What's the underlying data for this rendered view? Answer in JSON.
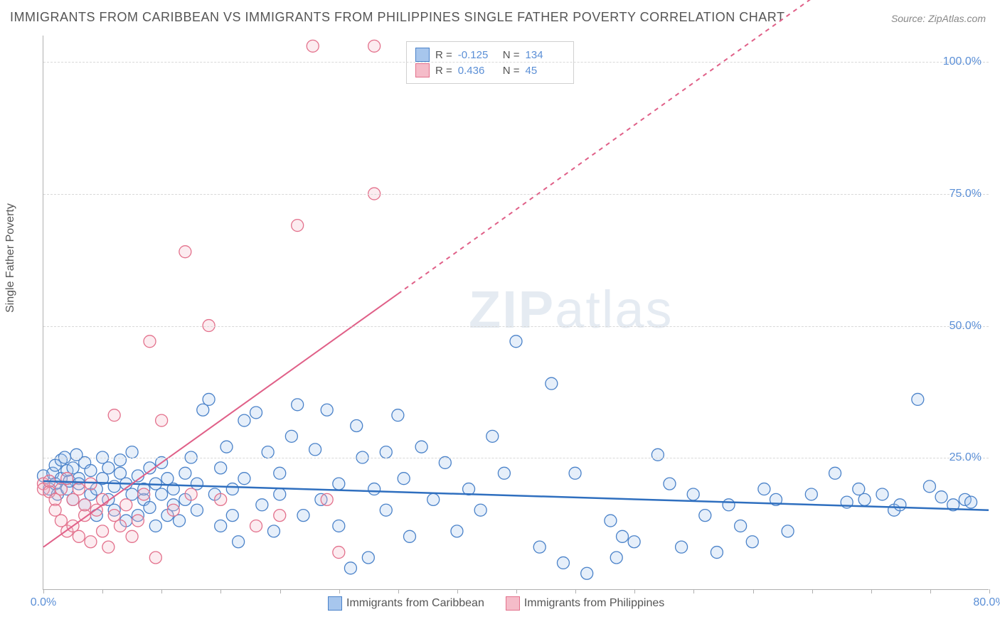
{
  "title": "IMMIGRANTS FROM CARIBBEAN VS IMMIGRANTS FROM PHILIPPINES SINGLE FATHER POVERTY CORRELATION CHART",
  "source": "Source: ZipAtlas.com",
  "watermark_part1": "ZIP",
  "watermark_part2": "atlas",
  "ylabel": "Single Father Poverty",
  "chart": {
    "type": "scatter",
    "xlim": [
      0,
      80
    ],
    "ylim": [
      0,
      105
    ],
    "ytick_positions": [
      25,
      50,
      75,
      100
    ],
    "ytick_labels": [
      "25.0%",
      "50.0%",
      "75.0%",
      "100.0%"
    ],
    "xtick_positions": [
      0,
      80
    ],
    "xtick_labels": [
      "0.0%",
      "80.0%"
    ],
    "xtick_minor_step": 5,
    "background_color": "#ffffff",
    "grid_color": "#d8d8d8",
    "marker_radius": 8.5,
    "marker_stroke_width": 1.3,
    "marker_fill_opacity": 0.28,
    "series": [
      {
        "name": "Immigrants from Caribbean",
        "color_fill": "#a7c6ed",
        "color_stroke": "#4a82c9",
        "r_value": "-0.125",
        "n_value": "134",
        "trend": {
          "x1": 0,
          "y1": 20.5,
          "x2": 80,
          "y2": 15.0,
          "dash": "none",
          "width": 2.5,
          "color": "#2f6fbf",
          "extend_to": 80
        },
        "points": [
          [
            0,
            21.5
          ],
          [
            0.5,
            19
          ],
          [
            0.8,
            22
          ],
          [
            1,
            20
          ],
          [
            1,
            23.5
          ],
          [
            1.2,
            18
          ],
          [
            1.5,
            21
          ],
          [
            1.5,
            24.5
          ],
          [
            1.8,
            25
          ],
          [
            2,
            19
          ],
          [
            2,
            22.5
          ],
          [
            2.2,
            20.5
          ],
          [
            2.5,
            23
          ],
          [
            2.5,
            17
          ],
          [
            2.8,
            25.5
          ],
          [
            3,
            21
          ],
          [
            3,
            20
          ],
          [
            3.5,
            24
          ],
          [
            3.5,
            16
          ],
          [
            4,
            18
          ],
          [
            4,
            22.5
          ],
          [
            4.5,
            19
          ],
          [
            4.5,
            14
          ],
          [
            5,
            25
          ],
          [
            5,
            21
          ],
          [
            5.5,
            17
          ],
          [
            5.5,
            23
          ],
          [
            6,
            19.5
          ],
          [
            6,
            15
          ],
          [
            6.5,
            22
          ],
          [
            6.5,
            24.5
          ],
          [
            7,
            20
          ],
          [
            7,
            13
          ],
          [
            7.5,
            18
          ],
          [
            7.5,
            26
          ],
          [
            8,
            14
          ],
          [
            8,
            21.5
          ],
          [
            8.5,
            17
          ],
          [
            8.5,
            19
          ],
          [
            9,
            23
          ],
          [
            9,
            15.5
          ],
          [
            9.5,
            20
          ],
          [
            9.5,
            12
          ],
          [
            10,
            24
          ],
          [
            10,
            18
          ],
          [
            10.5,
            14
          ],
          [
            10.5,
            21
          ],
          [
            11,
            16
          ],
          [
            11,
            19
          ],
          [
            11.5,
            13
          ],
          [
            12,
            22
          ],
          [
            12,
            17
          ],
          [
            12.5,
            25
          ],
          [
            13,
            15
          ],
          [
            13,
            20
          ],
          [
            13.5,
            34
          ],
          [
            14,
            36
          ],
          [
            14.5,
            18
          ],
          [
            15,
            12
          ],
          [
            15,
            23
          ],
          [
            15.5,
            27
          ],
          [
            16,
            14
          ],
          [
            16,
            19
          ],
          [
            16.5,
            9
          ],
          [
            17,
            32
          ],
          [
            17,
            21
          ],
          [
            18,
            33.5
          ],
          [
            18.5,
            16
          ],
          [
            19,
            26
          ],
          [
            19.5,
            11
          ],
          [
            20,
            22
          ],
          [
            20,
            18
          ],
          [
            21,
            29
          ],
          [
            21.5,
            35
          ],
          [
            22,
            14
          ],
          [
            23,
            26.5
          ],
          [
            23.5,
            17
          ],
          [
            24,
            34
          ],
          [
            25,
            12
          ],
          [
            25,
            20
          ],
          [
            26,
            4
          ],
          [
            26.5,
            31
          ],
          [
            27,
            25
          ],
          [
            27.5,
            6
          ],
          [
            28,
            19
          ],
          [
            29,
            15
          ],
          [
            29,
            26
          ],
          [
            30,
            33
          ],
          [
            30.5,
            21
          ],
          [
            31,
            10
          ],
          [
            32,
            27
          ],
          [
            33,
            17
          ],
          [
            34,
            24
          ],
          [
            35,
            11
          ],
          [
            36,
            19
          ],
          [
            37,
            15
          ],
          [
            38,
            29
          ],
          [
            39,
            22
          ],
          [
            40,
            47
          ],
          [
            42,
            8
          ],
          [
            43,
            39
          ],
          [
            44,
            5
          ],
          [
            45,
            22
          ],
          [
            46,
            3
          ],
          [
            48,
            13
          ],
          [
            48.5,
            6
          ],
          [
            49,
            10
          ],
          [
            50,
            9
          ],
          [
            52,
            25.5
          ],
          [
            53,
            20
          ],
          [
            54,
            8
          ],
          [
            55,
            18
          ],
          [
            56,
            14
          ],
          [
            57,
            7
          ],
          [
            58,
            16
          ],
          [
            59,
            12
          ],
          [
            60,
            9
          ],
          [
            61,
            19
          ],
          [
            62,
            17
          ],
          [
            63,
            11
          ],
          [
            65,
            18
          ],
          [
            67,
            22
          ],
          [
            68,
            16.5
          ],
          [
            69,
            19
          ],
          [
            69.5,
            17
          ],
          [
            71,
            18
          ],
          [
            72,
            15
          ],
          [
            72.5,
            16
          ],
          [
            74,
            36
          ],
          [
            75,
            19.5
          ],
          [
            76,
            17.5
          ],
          [
            77,
            16
          ],
          [
            78,
            17
          ],
          [
            78.5,
            16.5
          ]
        ]
      },
      {
        "name": "Immigrants from Philippines",
        "color_fill": "#f5bcc9",
        "color_stroke": "#e3718c",
        "r_value": "0.436",
        "n_value": "45",
        "trend": {
          "x1": 0,
          "y1": 8,
          "x2": 30,
          "y2": 56,
          "dash_after_x": 30,
          "dash": "6,6",
          "width": 2,
          "color": "#e06088",
          "extend_to": 80
        },
        "points": [
          [
            0,
            20
          ],
          [
            0,
            19
          ],
          [
            0.5,
            18.5
          ],
          [
            0.5,
            20.5
          ],
          [
            1,
            17
          ],
          [
            1,
            15
          ],
          [
            1.5,
            19
          ],
          [
            1.5,
            13
          ],
          [
            2,
            21
          ],
          [
            2,
            11
          ],
          [
            2.5,
            17
          ],
          [
            2.5,
            12
          ],
          [
            3,
            19
          ],
          [
            3,
            10
          ],
          [
            3.5,
            14
          ],
          [
            3.5,
            16
          ],
          [
            4,
            20
          ],
          [
            4,
            9
          ],
          [
            4.5,
            15
          ],
          [
            5,
            11
          ],
          [
            5,
            17
          ],
          [
            5.5,
            8
          ],
          [
            6,
            14
          ],
          [
            6,
            33
          ],
          [
            6.5,
            12
          ],
          [
            7,
            16
          ],
          [
            7.5,
            10
          ],
          [
            8,
            13
          ],
          [
            8.5,
            18
          ],
          [
            9,
            47
          ],
          [
            9.5,
            6
          ],
          [
            10,
            32
          ],
          [
            11,
            15
          ],
          [
            12,
            64
          ],
          [
            12.5,
            18
          ],
          [
            14,
            50
          ],
          [
            15,
            17
          ],
          [
            18,
            12
          ],
          [
            21.5,
            69
          ],
          [
            20,
            14
          ],
          [
            22.8,
            103
          ],
          [
            24,
            17
          ],
          [
            25,
            7
          ],
          [
            28,
            103
          ],
          [
            28,
            75
          ]
        ]
      }
    ]
  },
  "stats_box": {
    "r_label": "R =",
    "n_label": "N ="
  },
  "legend_labels": [
    "Immigrants from Caribbean",
    "Immigrants from Philippines"
  ]
}
